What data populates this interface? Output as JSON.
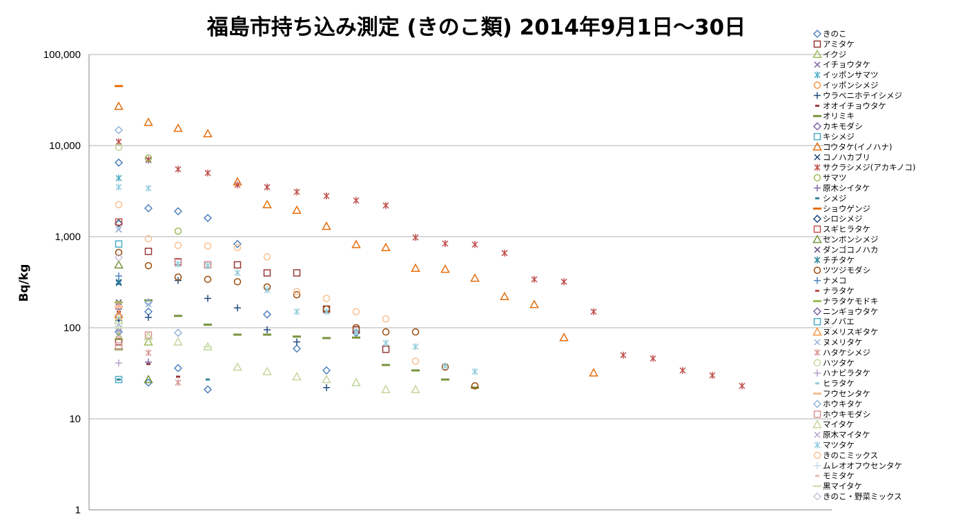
{
  "chart_data": {
    "type": "scatter",
    "title": "福島市持ち込み測定 (きのこ類) 2014年9月1日～30日",
    "xlabel": "",
    "ylabel": "Bq/kg",
    "yscale": "log",
    "ylim": [
      1,
      100000
    ],
    "yticks": [
      "1",
      "10",
      "100",
      "1,000",
      "10,000",
      "100,000"
    ],
    "grid": true,
    "legend_position": "right",
    "series": [
      {
        "name": "きのこ",
        "marker": "diamond",
        "color": "#4f81bd",
        "points": []
      },
      {
        "name": "アミタケ",
        "marker": "square",
        "color": "#953735",
        "points": [
          [
            1,
            70
          ],
          [
            2,
            690
          ],
          [
            3,
            530
          ],
          [
            4,
            490
          ],
          [
            5,
            490
          ],
          [
            6,
            400
          ],
          [
            7,
            400
          ],
          [
            8,
            160
          ],
          [
            9,
            95
          ],
          [
            10,
            58
          ]
        ]
      },
      {
        "name": "イクジ",
        "marker": "triangle",
        "color": "#9bbb59",
        "points": [
          [
            1,
            80
          ],
          [
            2,
            70
          ]
        ]
      },
      {
        "name": "イチョウタケ",
        "marker": "x",
        "color": "#8064a2",
        "points": [
          [
            1,
            1200
          ]
        ]
      },
      {
        "name": "イッポンサマツ",
        "marker": "star",
        "color": "#4bacc6",
        "points": [
          [
            1,
            4400
          ],
          [
            2,
            6900
          ]
        ]
      },
      {
        "name": "イッポンシメジ",
        "marker": "circle",
        "color": "#f79646",
        "points": [
          [
            1,
            130
          ]
        ]
      },
      {
        "name": "ウラベニホテイシメジ",
        "marker": "plus",
        "color": "#1f497d",
        "points": [
          [
            1,
            120
          ],
          [
            2,
            130
          ],
          [
            3,
            330
          ],
          [
            4,
            210
          ],
          [
            5,
            165
          ],
          [
            6,
            95
          ],
          [
            7,
            70
          ],
          [
            8,
            22
          ]
        ]
      },
      {
        "name": "オオイチョウタケ",
        "marker": "dash",
        "color": "#953735",
        "points": [
          [
            1,
            150
          ],
          [
            2,
            40
          ],
          [
            3,
            29
          ]
        ]
      },
      {
        "name": "オリミキ",
        "marker": "longdash",
        "color": "#77933c",
        "points": [
          [
            1,
            58
          ],
          [
            2,
            200
          ],
          [
            3,
            135
          ],
          [
            4,
            108
          ],
          [
            5,
            84
          ],
          [
            6,
            84
          ],
          [
            7,
            80
          ],
          [
            8,
            77
          ],
          [
            9,
            78
          ],
          [
            10,
            39
          ],
          [
            11,
            34
          ],
          [
            12,
            27
          ],
          [
            13,
            22
          ]
        ]
      },
      {
        "name": "カキモダシ",
        "marker": "diamond",
        "color": "#8064a2",
        "points": [
          [
            1,
            100
          ]
        ]
      },
      {
        "name": "キシメジ",
        "marker": "square",
        "color": "#4bacc6",
        "points": [
          [
            1,
            830
          ]
        ]
      },
      {
        "name": "コウタケ(イノハナ)",
        "marker": "triangle",
        "color": "#e46c0a",
        "points": [
          [
            1,
            27000
          ],
          [
            2,
            18000
          ],
          [
            3,
            15500
          ],
          [
            4,
            13500
          ],
          [
            5,
            4000
          ],
          [
            6,
            2250
          ],
          [
            7,
            1950
          ],
          [
            8,
            1300
          ],
          [
            9,
            820
          ],
          [
            10,
            760
          ],
          [
            11,
            450
          ],
          [
            12,
            440
          ],
          [
            13,
            350
          ],
          [
            14,
            220
          ],
          [
            15,
            180
          ],
          [
            16,
            78
          ],
          [
            17,
            32
          ]
        ]
      },
      {
        "name": "コノハカブリ",
        "marker": "x",
        "color": "#1f497d",
        "points": [
          [
            1,
            310
          ]
        ]
      },
      {
        "name": "サクラシメジ(アカキノコ)",
        "marker": "star",
        "color": "#c0504d",
        "points": [
          [
            1,
            11000
          ],
          [
            2,
            7000
          ],
          [
            3,
            5500
          ],
          [
            4,
            5000
          ],
          [
            5,
            3700
          ],
          [
            6,
            3500
          ],
          [
            7,
            3100
          ],
          [
            8,
            2800
          ],
          [
            9,
            2500
          ],
          [
            10,
            2200
          ],
          [
            11,
            980
          ],
          [
            12,
            840
          ],
          [
            13,
            820
          ],
          [
            14,
            660
          ],
          [
            15,
            340
          ],
          [
            16,
            320
          ],
          [
            17,
            150
          ],
          [
            18,
            50
          ],
          [
            19,
            46
          ],
          [
            20,
            34
          ],
          [
            21,
            30
          ],
          [
            22,
            23
          ]
        ]
      },
      {
        "name": "サマツ",
        "marker": "circle",
        "color": "#9bbb59",
        "points": [
          [
            1,
            9600
          ],
          [
            2,
            7300
          ],
          [
            3,
            1150
          ]
        ]
      },
      {
        "name": "原木シイタケ",
        "marker": "plus",
        "color": "#8064a2",
        "points": [
          [
            1,
            160
          ],
          [
            2,
            42
          ]
        ]
      },
      {
        "name": "シメジ",
        "marker": "dash",
        "color": "#31859c",
        "points": [
          [
            1,
            27
          ],
          [
            4,
            27
          ]
        ]
      },
      {
        "name": "ショウゲンジ",
        "marker": "longdash",
        "color": "#e46c0a",
        "points": [
          [
            1,
            45000
          ]
        ]
      },
      {
        "name": "シロシメジ",
        "marker": "diamond",
        "color": "#1f497d",
        "points": [
          [
            1,
            1400
          ]
        ]
      },
      {
        "name": "スギヒラタケ",
        "marker": "square",
        "color": "#c0504d",
        "points": [
          [
            1,
            1450
          ]
        ]
      },
      {
        "name": "センボンシメジ",
        "marker": "triangle",
        "color": "#77933c",
        "points": [
          [
            1,
            490
          ],
          [
            2,
            27
          ]
        ]
      },
      {
        "name": "ダンゴコノハカ",
        "marker": "x",
        "color": "#5f497a",
        "points": [
          [
            1,
            190
          ]
        ]
      },
      {
        "name": "チチタケ",
        "marker": "star",
        "color": "#31859c",
        "points": [
          [
            1,
            320
          ]
        ]
      },
      {
        "name": "ツツジモダシ",
        "marker": "circle",
        "color": "#984807",
        "points": [
          [
            1,
            670
          ],
          [
            2,
            480
          ],
          [
            3,
            360
          ],
          [
            4,
            340
          ],
          [
            5,
            320
          ],
          [
            6,
            280
          ],
          [
            7,
            230
          ],
          [
            8,
            160
          ],
          [
            9,
            100
          ],
          [
            10,
            90
          ],
          [
            11,
            90
          ],
          [
            12,
            37
          ],
          [
            13,
            23
          ]
        ]
      },
      {
        "name": "ナメコ",
        "marker": "plus",
        "color": "#4f81bd",
        "points": [
          [
            1,
            370
          ]
        ]
      },
      {
        "name": "ナラタケ",
        "marker": "dash",
        "color": "#c0504d",
        "points": [
          [
            1,
            190
          ]
        ]
      },
      {
        "name": "ナラタケモドキ",
        "marker": "longdash",
        "color": "#9bbb59",
        "points": [
          [
            1,
            190
          ]
        ]
      },
      {
        "name": "ニンギョウタケ",
        "marker": "diamond",
        "color": "#8064a2",
        "points": [
          [
            1,
            135
          ]
        ]
      },
      {
        "name": "ヌノバエ",
        "marker": "square",
        "color": "#4bacc6",
        "points": [
          [
            1,
            27
          ]
        ]
      },
      {
        "name": "ヌメリスギタケ",
        "marker": "triangle",
        "color": "#f79646",
        "points": [
          [
            1,
            140
          ]
        ]
      },
      {
        "name": "ヌメリタケ",
        "marker": "x",
        "color": "#95b3d7",
        "points": [
          [
            1,
            1200
          ],
          [
            2,
            180
          ]
        ]
      },
      {
        "name": "ハタケシメジ",
        "marker": "star",
        "color": "#d99694",
        "points": [
          [
            1,
            175
          ],
          [
            2,
            53
          ],
          [
            3,
            25
          ]
        ]
      },
      {
        "name": "ハツタケ",
        "marker": "circle",
        "color": "#c3d69b",
        "points": [
          [
            1,
            9600
          ]
        ]
      },
      {
        "name": "ハナビラタケ",
        "marker": "plus",
        "color": "#b3a2c7",
        "points": [
          [
            1,
            41
          ]
        ]
      },
      {
        "name": "ヒラタケ",
        "marker": "dash",
        "color": "#93cddd",
        "points": [
          [
            1,
            130
          ]
        ]
      },
      {
        "name": "フウセンタケ",
        "marker": "longdash",
        "color": "#fac090",
        "points": [
          [
            1,
            170
          ]
        ]
      },
      {
        "name": "ホウキタケ",
        "marker": "diamond",
        "color": "#95b3d7",
        "points": [
          [
            1,
            14800
          ],
          [
            2,
            190
          ],
          [
            3,
            88
          ]
        ]
      },
      {
        "name": "ホウキモダシ",
        "marker": "square",
        "color": "#d99694",
        "points": [
          [
            1,
            63
          ],
          [
            2,
            83
          ],
          [
            3,
            520
          ],
          [
            4,
            490
          ]
        ]
      },
      {
        "name": "マイタケ",
        "marker": "triangle",
        "color": "#c3d69b",
        "points": [
          [
            1,
            120
          ],
          [
            2,
            80
          ],
          [
            3,
            70
          ],
          [
            4,
            62
          ],
          [
            5,
            37
          ],
          [
            6,
            33
          ],
          [
            7,
            29
          ],
          [
            8,
            27
          ],
          [
            9,
            25
          ],
          [
            10,
            21
          ],
          [
            11,
            21
          ]
        ]
      },
      {
        "name": "原木マイタケ",
        "marker": "x",
        "color": "#b3a2c7",
        "points": [
          [
            1,
            93
          ]
        ]
      },
      {
        "name": "マツタケ",
        "marker": "star",
        "color": "#93cddd",
        "points": [
          [
            1,
            3500
          ],
          [
            2,
            3400
          ],
          [
            3,
            500
          ],
          [
            4,
            480
          ],
          [
            5,
            400
          ],
          [
            6,
            260
          ],
          [
            7,
            150
          ],
          [
            8,
            150
          ],
          [
            9,
            90
          ],
          [
            10,
            68
          ],
          [
            11,
            62
          ],
          [
            12,
            38
          ],
          [
            13,
            33
          ]
        ]
      },
      {
        "name": "きのこミックス",
        "marker": "circle",
        "color": "#fac090",
        "points": [
          [
            1,
            2250
          ],
          [
            2,
            950
          ],
          [
            3,
            800
          ],
          [
            4,
            790
          ],
          [
            5,
            760
          ],
          [
            6,
            600
          ],
          [
            7,
            250
          ],
          [
            8,
            210
          ],
          [
            9,
            150
          ],
          [
            10,
            125
          ],
          [
            11,
            43
          ]
        ]
      },
      {
        "name": "ムレオオフウセンタケ",
        "marker": "plus",
        "color": "#c6d9f1",
        "points": [
          [
            1,
            105
          ]
        ]
      },
      {
        "name": "モミタケ",
        "marker": "dash",
        "color": "#e6b9b8",
        "points": [
          [
            1,
            80
          ]
        ]
      },
      {
        "name": "黒マイタケ",
        "marker": "longdash",
        "color": "#d7e4bd",
        "points": [
          [
            1,
            100
          ],
          [
            4,
            62
          ]
        ]
      },
      {
        "name": "きのこ・野菜ミックス",
        "marker": "diamond",
        "color": "#ccc1da",
        "points": [
          [
            1,
            590
          ]
        ]
      }
    ],
    "extra_points_series0": [
      [
        1,
        6500
      ],
      [
        2,
        2050
      ],
      [
        3,
        1900
      ],
      [
        4,
        1600
      ],
      [
        5,
        830
      ],
      [
        6,
        140
      ],
      [
        7,
        59
      ],
      [
        8,
        34
      ],
      [
        9,
        88
      ],
      [
        2,
        150
      ],
      [
        3,
        36
      ],
      [
        4,
        21
      ],
      [
        1,
        90
      ],
      [
        2,
        25
      ]
    ]
  }
}
